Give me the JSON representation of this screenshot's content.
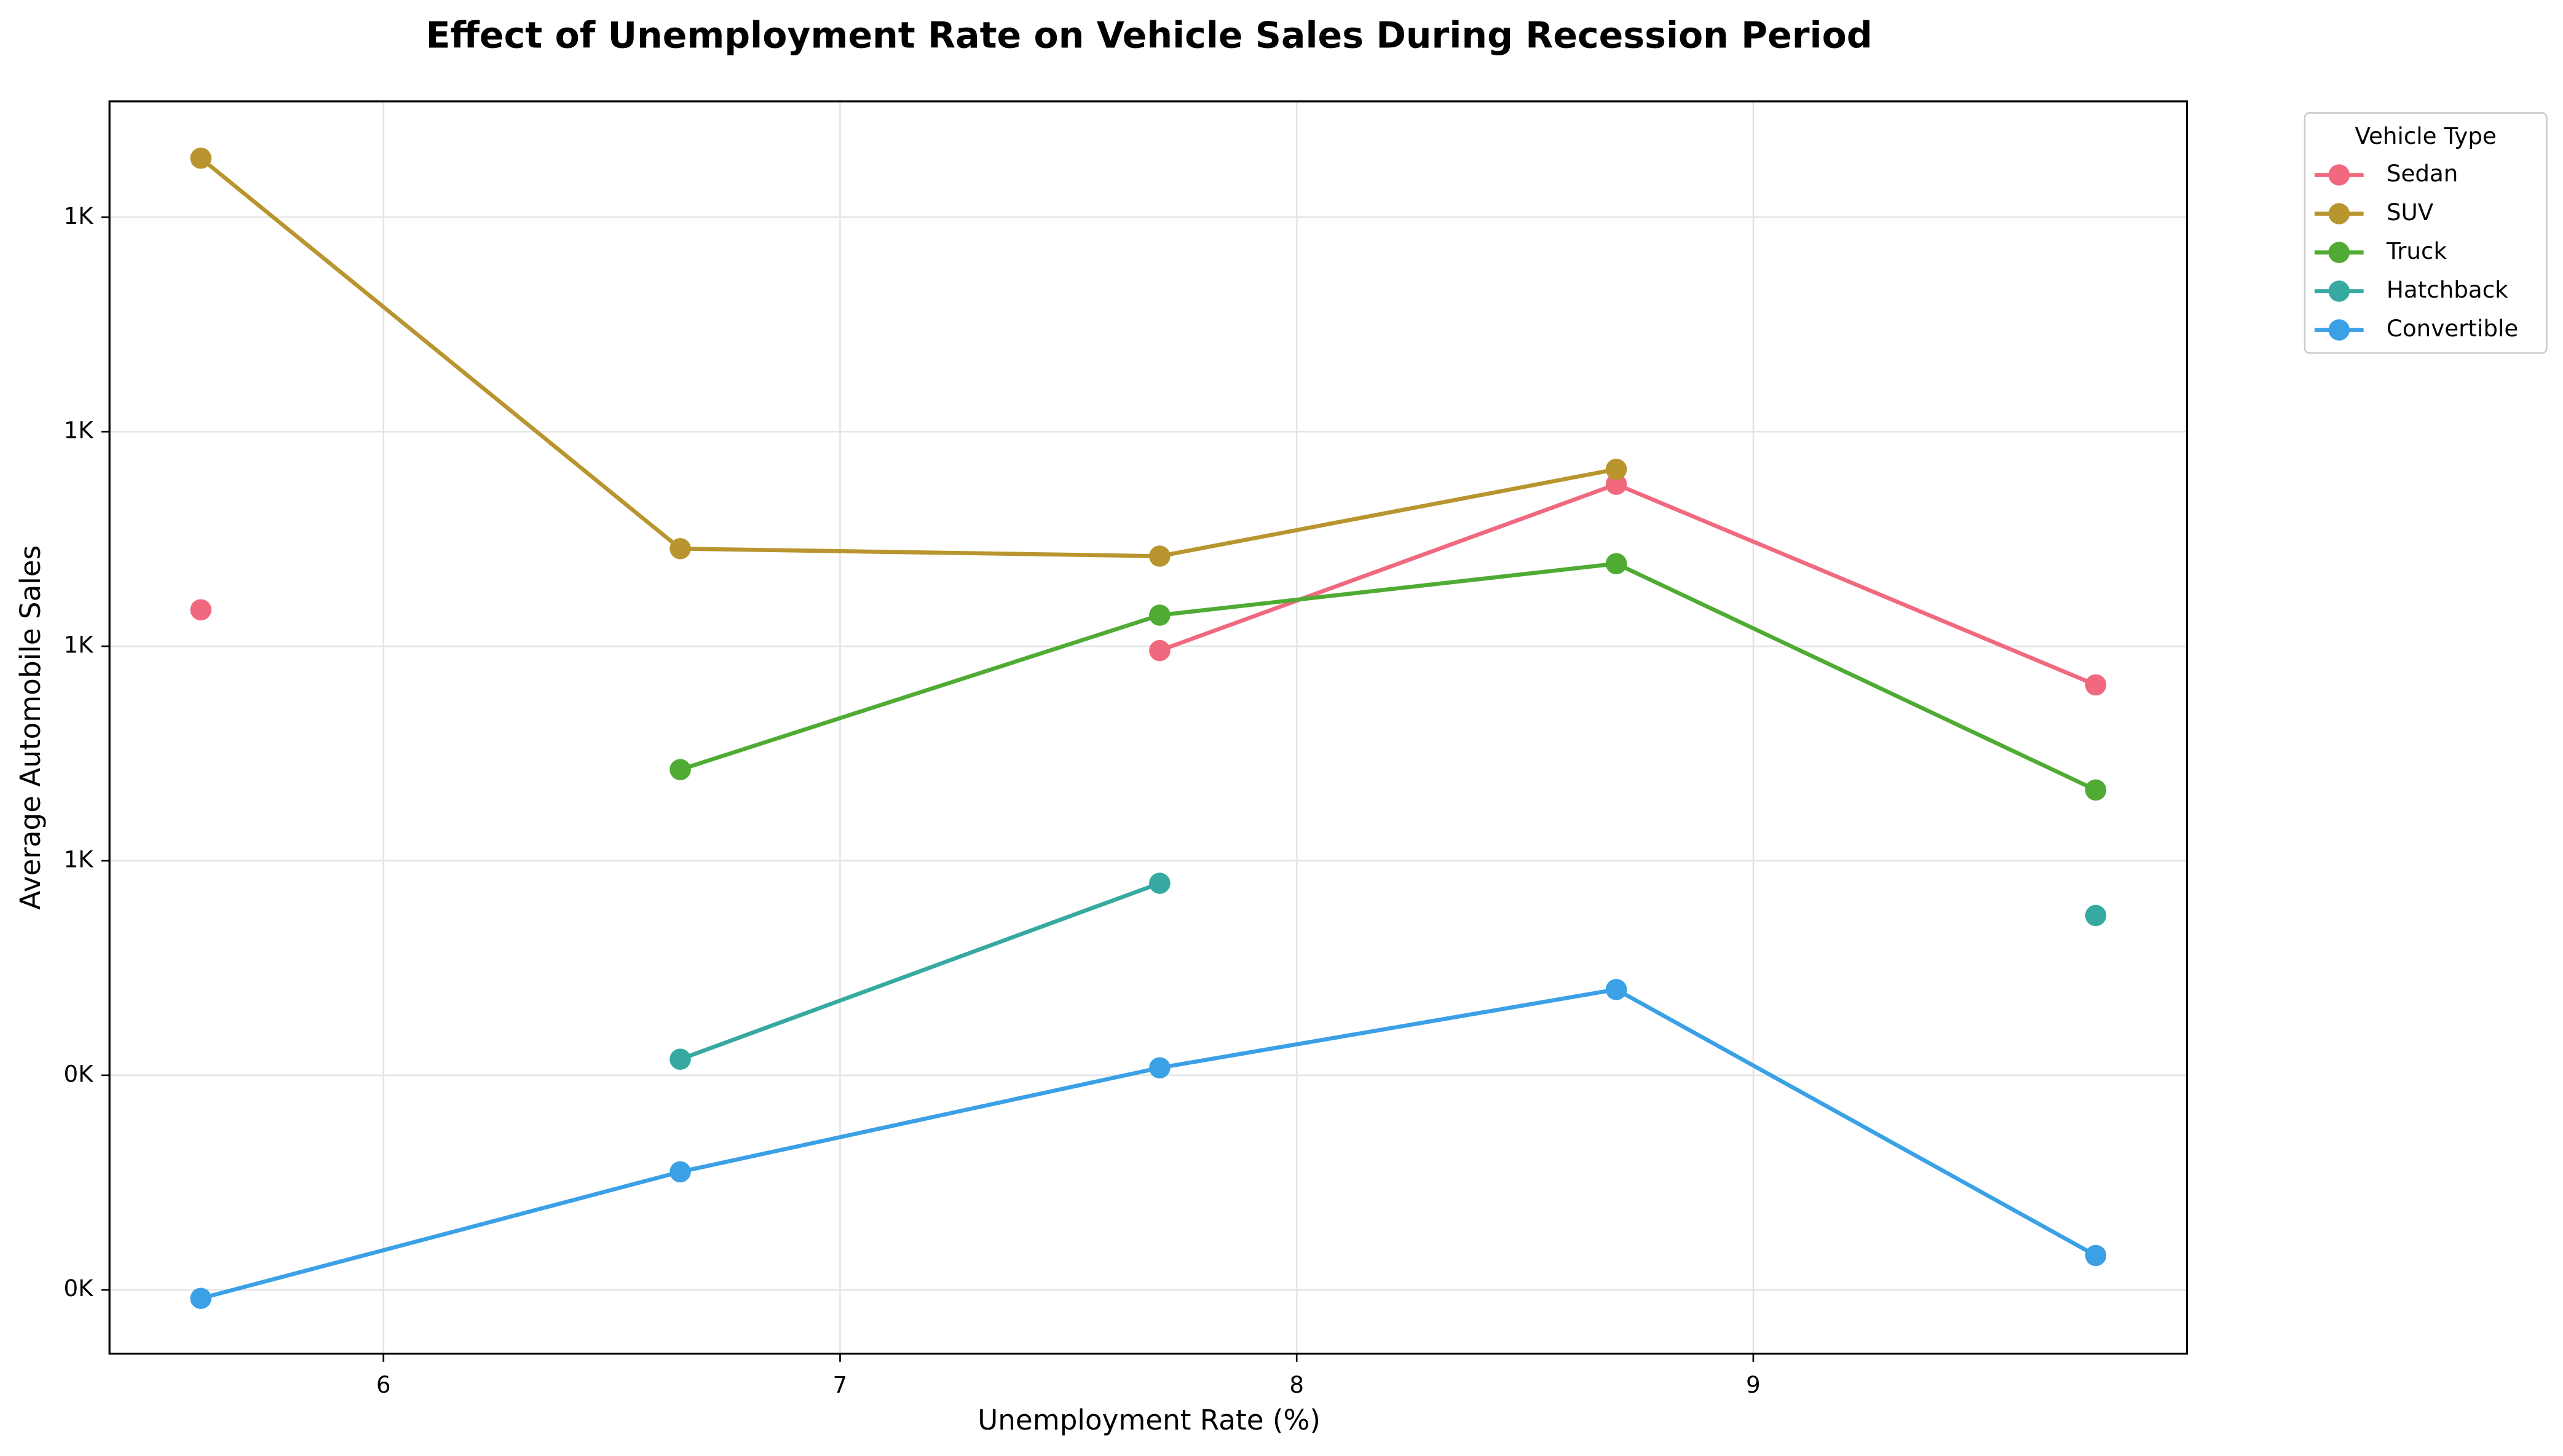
{
  "chart_data": {
    "type": "line",
    "title": "Effect of Unemployment Rate on Vehicle Sales During Recession Period",
    "x_label": "Unemployment Rate (%)",
    "y_label": "Average Automobile Sales",
    "legend_title": "Vehicle Type",
    "legend_position": "outside-upper-right",
    "grid": true,
    "x": [
      5.6,
      6.65,
      7.7,
      8.7,
      9.75
    ],
    "series": [
      {
        "name": "Sedan",
        "color": "#f0697f",
        "values": [
          834,
          null,
          796,
          951,
          764
        ]
      },
      {
        "name": "SUV",
        "color": "#b8952f",
        "values": [
          1255,
          891,
          884,
          965,
          null
        ]
      },
      {
        "name": "Truck",
        "color": "#4fab33",
        "values": [
          null,
          685,
          829,
          877,
          666
        ]
      },
      {
        "name": "Hatchback",
        "color": "#36a9a0",
        "values": [
          null,
          415,
          579,
          null,
          549
        ]
      },
      {
        "name": "Convertible",
        "color": "#3ba0e6",
        "values": [
          192,
          310,
          407,
          480,
          232
        ]
      }
    ],
    "xlim": [
      5.4,
      9.95
    ],
    "xticks": [
      6,
      7,
      8,
      9
    ],
    "ylim": [
      140.5,
      1308
    ],
    "yticks": [
      {
        "value": 200,
        "label": "0K"
      },
      {
        "value": 400,
        "label": "0K"
      },
      {
        "value": 600,
        "label": "1K"
      },
      {
        "value": 800,
        "label": "1K"
      },
      {
        "value": 1000,
        "label": "1K"
      },
      {
        "value": 1200,
        "label": "1K"
      }
    ]
  }
}
